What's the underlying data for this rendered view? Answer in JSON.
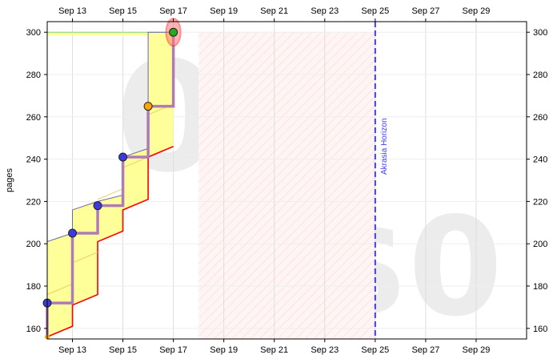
{
  "chart_data": {
    "type": "line",
    "title": "",
    "ylabel": "pages",
    "xlabel": "",
    "x_start": "2023-09-12",
    "x_end": "2023-10-01",
    "ylim": [
      155,
      305
    ],
    "y_ticks": [
      160,
      180,
      200,
      220,
      240,
      260,
      280,
      300
    ],
    "x_ticks": [
      {
        "date": "2023-09-13",
        "label": "Sep 13"
      },
      {
        "date": "2023-09-15",
        "label": "Sep 15"
      },
      {
        "date": "2023-09-17",
        "label": "Sep 17"
      },
      {
        "date": "2023-09-19",
        "label": "Sep 19"
      },
      {
        "date": "2023-09-21",
        "label": "Sep 21"
      },
      {
        "date": "2023-09-23",
        "label": "Sep 23"
      },
      {
        "date": "2023-09-25",
        "label": "Sep 25"
      },
      {
        "date": "2023-09-27",
        "label": "Sep 27"
      },
      {
        "date": "2023-09-29",
        "label": "Sep 29"
      }
    ],
    "grid": true,
    "datapoints": [
      {
        "date": "2023-09-12",
        "value": 172,
        "color": "blue"
      },
      {
        "date": "2023-09-13",
        "value": 205,
        "color": "blue"
      },
      {
        "date": "2023-09-14",
        "value": 218,
        "color": "blue"
      },
      {
        "date": "2023-09-15",
        "value": 241,
        "color": "blue"
      },
      {
        "date": "2023-09-16",
        "value": 265,
        "color": "orange"
      },
      {
        "date": "2023-09-17",
        "value": 300,
        "color": "green"
      }
    ],
    "road_lower": [
      {
        "date": "2023-09-12",
        "value": 156
      },
      {
        "date": "2023-09-13",
        "value": 161
      },
      {
        "date": "2023-09-13",
        "value": 171
      },
      {
        "date": "2023-09-14",
        "value": 176
      },
      {
        "date": "2023-09-14",
        "value": 201
      },
      {
        "date": "2023-09-15",
        "value": 206
      },
      {
        "date": "2023-09-15",
        "value": 216
      },
      {
        "date": "2023-09-16",
        "value": 221
      },
      {
        "date": "2023-09-16",
        "value": 241
      },
      {
        "date": "2023-09-17",
        "value": 246
      }
    ],
    "road_upper": [
      {
        "date": "2023-09-12",
        "value": 201
      },
      {
        "date": "2023-09-13",
        "value": 205
      },
      {
        "date": "2023-09-13",
        "value": 216
      },
      {
        "date": "2023-09-14",
        "value": 220
      },
      {
        "date": "2023-09-15",
        "value": 223
      },
      {
        "date": "2023-09-15",
        "value": 241
      },
      {
        "date": "2023-09-16",
        "value": 245
      },
      {
        "date": "2023-09-16",
        "value": 300
      },
      {
        "date": "2023-09-17",
        "value": 300
      }
    ],
    "goal_value": 300,
    "akrasia_horizon": {
      "date": "2023-09-25",
      "label": "Akrasia Horizon"
    },
    "hatched_region": {
      "from": "2023-09-18",
      "to": "2023-09-25"
    },
    "watermarks": {
      "top": "0",
      "bottom": "$0"
    },
    "colors": {
      "road_fill": "#ffff99",
      "road_lower": "#ff0000",
      "progress": "#b07ab8",
      "point_blue": "#3b3bdd",
      "point_orange": "#ffa500",
      "point_green": "#22aa22",
      "horizon": "#3b3bff",
      "hatch": "#ffcccc"
    }
  }
}
